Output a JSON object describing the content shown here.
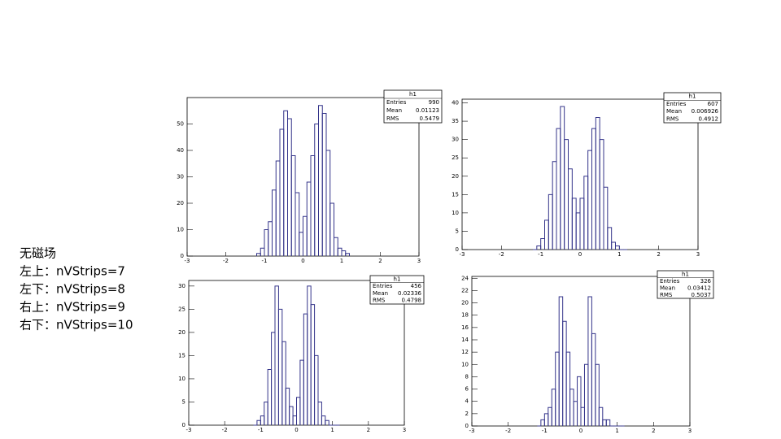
{
  "notes": {
    "title": "无磁场",
    "lines": [
      "左上：nVStrips=7",
      "左下：nVStrips=8",
      "右上：nVStrips=9",
      "右下：nVStrips=10"
    ]
  },
  "chart_data": [
    {
      "type": "histogram",
      "color": "#34348a",
      "bins": [
        -1.2,
        -1.1,
        -1.0,
        -0.9,
        -0.8,
        -0.7,
        -0.6,
        -0.5,
        -0.4,
        -0.3,
        -0.2,
        -0.1,
        0,
        0.1,
        0.2,
        0.3,
        0.4,
        0.5,
        0.6,
        0.7,
        0.8,
        0.9,
        1.0,
        1.1,
        1.2
      ],
      "values": [
        1,
        3,
        10,
        13,
        25,
        36,
        48,
        55,
        52,
        38,
        24,
        9,
        15,
        28,
        38,
        50,
        57,
        54,
        40,
        20,
        7,
        3,
        2,
        1
      ],
      "xlim": [
        -3,
        3
      ],
      "xticks": [
        -3,
        -2,
        -1,
        0,
        1,
        2,
        3
      ],
      "ylim": [
        0,
        60
      ],
      "yticks": [
        0,
        10,
        20,
        30,
        40,
        50
      ],
      "stats": {
        "title": "h1",
        "labels": [
          "Entries",
          "Mean",
          "RMS"
        ],
        "values": [
          990,
          0.01123,
          0.5479
        ]
      }
    },
    {
      "type": "histogram",
      "color": "#34348a",
      "bins": [
        -1.2,
        -1.1,
        -1.0,
        -0.9,
        -0.8,
        -0.7,
        -0.6,
        -0.5,
        -0.4,
        -0.3,
        -0.2,
        -0.1,
        0,
        0.1,
        0.2,
        0.3,
        0.4,
        0.5,
        0.6,
        0.7,
        0.8,
        0.9,
        1.0,
        1.1,
        1.2
      ],
      "values": [
        0,
        1,
        3,
        8,
        15,
        24,
        33,
        39,
        30,
        22,
        14,
        10,
        14,
        20,
        27,
        33,
        36,
        30,
        17,
        6,
        2,
        1,
        0,
        0
      ],
      "xlim": [
        -3,
        3
      ],
      "xticks": [
        -3,
        -2,
        -1,
        0,
        1,
        2,
        3
      ],
      "ylim": [
        0,
        41
      ],
      "yticks": [
        0,
        5,
        10,
        15,
        20,
        25,
        30,
        35,
        40
      ],
      "stats": {
        "title": "h1",
        "labels": [
          "Entries",
          "Mean",
          "RMS"
        ],
        "values": [
          607,
          0.006926,
          0.4912
        ]
      }
    },
    {
      "type": "histogram",
      "color": "#34348a",
      "bins": [
        -1.2,
        -1.1,
        -1.0,
        -0.9,
        -0.8,
        -0.7,
        -0.6,
        -0.5,
        -0.4,
        -0.3,
        -0.2,
        -0.1,
        0,
        0.1,
        0.2,
        0.3,
        0.4,
        0.5,
        0.6,
        0.7,
        0.8,
        0.9,
        1.0,
        1.1,
        1.2
      ],
      "values": [
        0,
        1,
        2,
        5,
        12,
        20,
        30,
        25,
        18,
        8,
        4,
        2,
        6,
        14,
        24,
        30,
        26,
        15,
        5,
        2,
        1,
        0,
        0,
        0
      ],
      "xlim": [
        -3,
        3
      ],
      "xticks": [
        -3,
        -2,
        -1,
        0,
        1,
        2,
        3
      ],
      "ylim": [
        0,
        31.2
      ],
      "yticks": [
        0,
        5,
        10,
        15,
        20,
        25,
        30
      ],
      "stats": {
        "title": "h1",
        "labels": [
          "Entries",
          "Mean",
          "RMS"
        ],
        "values": [
          456,
          0.02336,
          0.4798
        ]
      }
    },
    {
      "type": "histogram",
      "color": "#34348a",
      "bins": [
        -1.2,
        -1.1,
        -1.0,
        -0.9,
        -0.8,
        -0.7,
        -0.6,
        -0.5,
        -0.4,
        -0.3,
        -0.2,
        -0.1,
        0,
        0.1,
        0.2,
        0.3,
        0.4,
        0.5,
        0.6,
        0.7,
        0.8,
        0.9,
        1.0,
        1.1,
        1.2
      ],
      "values": [
        0,
        1,
        2,
        3,
        6,
        12,
        21,
        17,
        12,
        6,
        4,
        8,
        3,
        10,
        21,
        15,
        10,
        3,
        1,
        1,
        0,
        0,
        0,
        0
      ],
      "xlim": [
        -3,
        3
      ],
      "xticks": [
        -3,
        -2,
        -1,
        0,
        1,
        2,
        3
      ],
      "ylim": [
        0,
        24.3
      ],
      "yticks": [
        0,
        2,
        4,
        6,
        8,
        10,
        12,
        14,
        16,
        18,
        20,
        22,
        24
      ],
      "stats": {
        "title": "h1",
        "labels": [
          "Entries",
          "Mean",
          "RMS"
        ],
        "values": [
          326,
          0.03412,
          0.5037
        ]
      }
    }
  ]
}
